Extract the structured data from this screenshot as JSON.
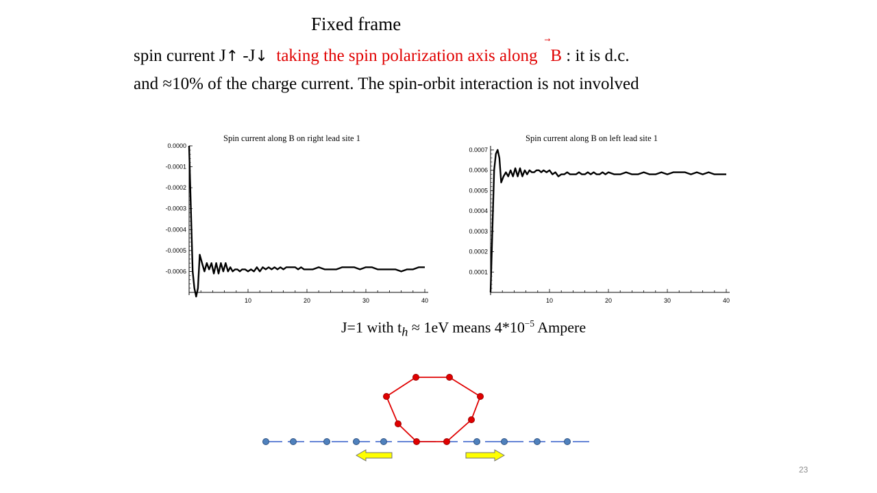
{
  "slide": {
    "title": "Fixed frame",
    "line1": {
      "prefix": "spin current  J",
      "up_arrow": "↑",
      "mid": " -J",
      "down_arrow": "↓",
      "red_text": "taking the spin polarization axis along",
      "b_vec_arrow": "⃗",
      "b_letter": "B",
      "suffix": " : it  is  d.c."
    },
    "line2": "and   ≈10% of the charge current. The spin-orbit interaction is not involved",
    "note": {
      "a": "J=1 with t",
      "sub": "h",
      "b": " ≈ 1eV   means  4*10",
      "sup": "−5",
      "c": "  Ampere"
    },
    "page_number": "23"
  },
  "colors": {
    "accent_red": "#e00000",
    "ring_site": "#e00000",
    "lead_site": "#4f81bd",
    "lead_line": "#2e5ac8",
    "arrow_fill": "#ffff00"
  },
  "chart_data": [
    {
      "type": "line",
      "title": "Spin current   along B on right lead site 1",
      "xlim": [
        0,
        40
      ],
      "ylim": [
        -0.0007,
        0.0
      ],
      "x_ticks": [
        10,
        20,
        30,
        40
      ],
      "y_ticks": [
        "0.0000",
        "-0.0001",
        "-0.0002",
        "-0.0003",
        "-0.0004",
        "-0.0005",
        "-0.0006"
      ],
      "y_tick_values": [
        0.0,
        -0.0001,
        -0.0002,
        -0.0003,
        -0.0004,
        -0.0005,
        -0.0006
      ],
      "series": [
        {
          "x": [
            0,
            0.3,
            0.6,
            0.9,
            1.2,
            1.5,
            1.8,
            2.2,
            2.6,
            3.0,
            3.4,
            3.8,
            4.2,
            4.6,
            5.0,
            5.4,
            5.8,
            6.2,
            6.6,
            7.0,
            7.4,
            7.8,
            8.2,
            8.6,
            9.0,
            9.5,
            10,
            10.5,
            11,
            11.5,
            12,
            12.5,
            13,
            13.5,
            14,
            14.5,
            15,
            15.5,
            16,
            16.5,
            17,
            17.5,
            18,
            18.5,
            19,
            19.5,
            20,
            21,
            22,
            23,
            24,
            25,
            26,
            27,
            28,
            29,
            30,
            31,
            32,
            33,
            34,
            35,
            36,
            37,
            38,
            39,
            40
          ],
          "y": [
            0.0,
            -0.0003,
            -0.0006,
            -0.00068,
            -0.00072,
            -0.00068,
            -0.00052,
            -0.00056,
            -0.0006,
            -0.00056,
            -0.00059,
            -0.00056,
            -0.00061,
            -0.00056,
            -0.00061,
            -0.00056,
            -0.0006,
            -0.00056,
            -0.0006,
            -0.00058,
            -0.0006,
            -0.00059,
            -0.00059,
            -0.0006,
            -0.00059,
            -0.00059,
            -0.0006,
            -0.00059,
            -0.0006,
            -0.00058,
            -0.0006,
            -0.00058,
            -0.00059,
            -0.00058,
            -0.00059,
            -0.00058,
            -0.00059,
            -0.00058,
            -0.00059,
            -0.00058,
            -0.00058,
            -0.00058,
            -0.00058,
            -0.00059,
            -0.00058,
            -0.00059,
            -0.00059,
            -0.00059,
            -0.00058,
            -0.00059,
            -0.00059,
            -0.00059,
            -0.00058,
            -0.00058,
            -0.00058,
            -0.00059,
            -0.00058,
            -0.00058,
            -0.00059,
            -0.00059,
            -0.00059,
            -0.00059,
            -0.0006,
            -0.00059,
            -0.00059,
            -0.00058,
            -0.00058
          ]
        }
      ]
    },
    {
      "type": "line",
      "title": "Spin current    along B on left lead site 1",
      "xlim": [
        0,
        40
      ],
      "ylim": [
        0.0,
        0.00072
      ],
      "x_ticks": [
        10,
        20,
        30,
        40
      ],
      "y_ticks": [
        "0.0007",
        "0.0006",
        "0.0005",
        "0.0004",
        "0.0003",
        "0.0002",
        "0.0001"
      ],
      "y_tick_values": [
        0.0007,
        0.0006,
        0.0005,
        0.0004,
        0.0003,
        0.0002,
        0.0001
      ],
      "series": [
        {
          "x": [
            0,
            0.3,
            0.6,
            0.9,
            1.2,
            1.5,
            1.8,
            2.2,
            2.6,
            3.0,
            3.4,
            3.8,
            4.2,
            4.6,
            5.0,
            5.4,
            5.8,
            6.2,
            6.6,
            7.0,
            7.4,
            7.8,
            8.2,
            8.6,
            9.0,
            9.5,
            10,
            10.5,
            11,
            11.5,
            12,
            12.5,
            13,
            13.5,
            14,
            14.5,
            15,
            15.5,
            16,
            16.5,
            17,
            17.5,
            18,
            18.5,
            19,
            19.5,
            20,
            21,
            22,
            23,
            24,
            25,
            26,
            27,
            28,
            29,
            30,
            31,
            32,
            33,
            34,
            35,
            36,
            37,
            38,
            39,
            40
          ],
          "y": [
            0.0,
            0.0003,
            0.0006,
            0.00068,
            0.0007,
            0.00066,
            0.00054,
            0.00057,
            0.00059,
            0.00057,
            0.0006,
            0.00057,
            0.00061,
            0.00057,
            0.00061,
            0.00057,
            0.0006,
            0.00058,
            0.0006,
            0.00059,
            0.00059,
            0.0006,
            0.0006,
            0.00059,
            0.0006,
            0.00059,
            0.0006,
            0.00058,
            0.00059,
            0.00057,
            0.00058,
            0.00058,
            0.00059,
            0.00058,
            0.00058,
            0.00058,
            0.00059,
            0.00058,
            0.00058,
            0.00059,
            0.00058,
            0.00059,
            0.00058,
            0.00058,
            0.00059,
            0.00058,
            0.00059,
            0.00058,
            0.00058,
            0.00059,
            0.00058,
            0.00058,
            0.00059,
            0.00058,
            0.00058,
            0.00059,
            0.00058,
            0.00059,
            0.00059,
            0.00059,
            0.00058,
            0.00059,
            0.00058,
            0.00059,
            0.00058,
            0.00058,
            0.00058
          ]
        }
      ]
    }
  ]
}
